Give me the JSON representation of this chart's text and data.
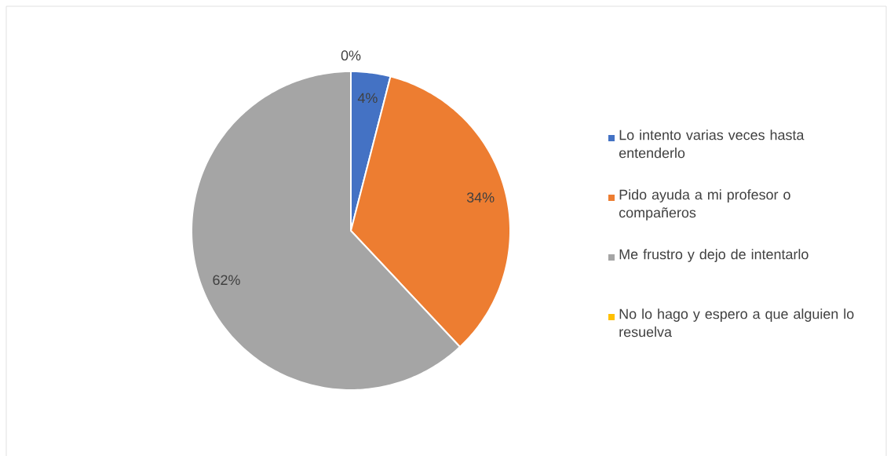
{
  "chart_data": {
    "type": "pie",
    "categories": [
      "Lo intento varias veces hasta entenderlo",
      "Pido ayuda a mi profesor o compañeros",
      "Me frustro y dejo de intentarlo",
      "No lo hago y espero a que alguien lo resuelva"
    ],
    "values": [
      4,
      34,
      62,
      0
    ],
    "colors": [
      "#4472c4",
      "#ed7d31",
      "#a5a5a5",
      "#ffc000"
    ],
    "value_labels": [
      "4%",
      "34%",
      "62%",
      "0%"
    ],
    "legend": "right"
  }
}
